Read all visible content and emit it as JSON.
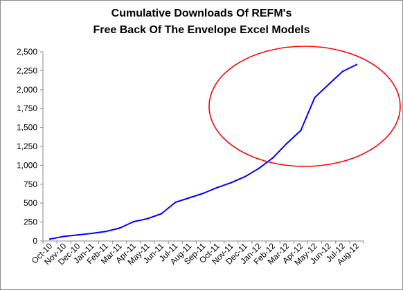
{
  "chart_data": {
    "type": "line",
    "title_lines": [
      "Cumulative Downloads Of REFM's",
      "Free Back Of The Envelope Excel Models"
    ],
    "categories": [
      "Oct-10",
      "Nov-10",
      "Dec-10",
      "Jan-11",
      "Feb-11",
      "Mar-11",
      "Apr-11",
      "May-11",
      "Jun-11",
      "Jul-11",
      "Aug-11",
      "Sep-11",
      "Oct-11",
      "Nov-11",
      "Dec-11",
      "Jan-12",
      "Feb-12",
      "Mar-12",
      "Apr-12",
      "May-12",
      "Jun-12",
      "Jul-12",
      "Aug-12"
    ],
    "values": [
      25,
      60,
      80,
      100,
      125,
      170,
      255,
      295,
      360,
      510,
      570,
      630,
      705,
      770,
      850,
      960,
      1100,
      1290,
      1460,
      1895,
      2070,
      2240,
      2330
    ],
    "ylim": [
      0,
      2500
    ],
    "yticks": [
      "0",
      "250",
      "500",
      "750",
      "1,000",
      "1,250",
      "1,500",
      "1,750",
      "2,000",
      "2,250",
      "2,500"
    ],
    "grid": false,
    "legend": "none",
    "line_color": "#0000ff",
    "annotation": {
      "shape": "ellipse",
      "color": "#ff0000"
    }
  }
}
